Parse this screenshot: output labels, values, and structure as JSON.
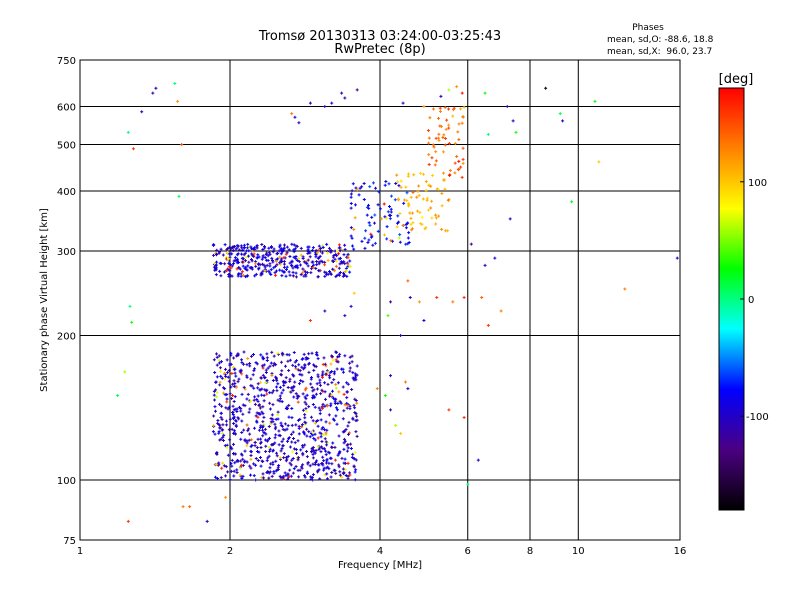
{
  "chart_data": {
    "type": "scatter",
    "title": "Tromsø 20130313 03:24:00-03:25:43",
    "subtitle": "RwPretec (8p)",
    "xlabel": "Frequency [MHz]",
    "ylabel": "Stationary phase Virtual Height [km]",
    "x_scale": "log",
    "y_scale": "log",
    "xlim": [
      1,
      16
    ],
    "ylim": [
      75,
      750
    ],
    "x_ticks": [
      1,
      2,
      4,
      6,
      8,
      10,
      16
    ],
    "y_ticks": [
      75,
      100,
      200,
      300,
      400,
      500,
      600,
      750
    ],
    "x_gridlines": [
      2,
      4,
      6,
      8,
      10
    ],
    "y_gridlines": [
      100,
      200,
      300,
      400,
      500,
      600
    ],
    "grid": true,
    "phases": {
      "heading": "Phases",
      "line_o": "mean, sd,O: -88.6, 18.8",
      "line_x": "mean, sd,X:  96.0, 23.7"
    },
    "colorbar": {
      "label": "[deg]",
      "range": [
        -180,
        180
      ],
      "ticks": [
        100,
        0,
        -100
      ],
      "colormap": "rainbow",
      "colors": [
        "#000000",
        "#4b0082",
        "#0000ff",
        "#00ffff",
        "#00ff00",
        "#ffff00",
        "#ff8000",
        "#ff0000"
      ]
    },
    "clusters": [
      {
        "x": [
          1.85,
          3.6
        ],
        "y": [
          100,
          185
        ],
        "phase": -100,
        "count": 950
      },
      {
        "x": [
          1.85,
          3.5
        ],
        "y": [
          265,
          310
        ],
        "phase": -95,
        "count": 420
      },
      {
        "x": [
          3.5,
          4.6
        ],
        "y": [
          300,
          420
        ],
        "phase": -80,
        "count": 90
      },
      {
        "x": [
          4.3,
          5.5
        ],
        "y": [
          330,
          440
        ],
        "phase": 110,
        "count": 70
      },
      {
        "x": [
          5.0,
          5.9
        ],
        "y": [
          420,
          600
        ],
        "phase": 140,
        "count": 60
      }
    ],
    "sparse_points": [
      {
        "x": 1.25,
        "y": 530,
        "phase": 0
      },
      {
        "x": 1.28,
        "y": 490,
        "phase": 160
      },
      {
        "x": 1.33,
        "y": 585,
        "phase": -100
      },
      {
        "x": 1.4,
        "y": 640,
        "phase": -110
      },
      {
        "x": 1.42,
        "y": 655,
        "phase": -110
      },
      {
        "x": 1.55,
        "y": 670,
        "phase": 0
      },
      {
        "x": 1.57,
        "y": 615,
        "phase": 120
      },
      {
        "x": 1.58,
        "y": 390,
        "phase": 10
      },
      {
        "x": 1.6,
        "y": 500,
        "phase": 150
      },
      {
        "x": 1.26,
        "y": 230,
        "phase": 0
      },
      {
        "x": 1.27,
        "y": 213,
        "phase": 30
      },
      {
        "x": 1.23,
        "y": 168,
        "phase": 60
      },
      {
        "x": 1.19,
        "y": 150,
        "phase": 10
      },
      {
        "x": 1.25,
        "y": 82,
        "phase": 160
      },
      {
        "x": 1.61,
        "y": 88,
        "phase": 130
      },
      {
        "x": 1.66,
        "y": 88,
        "phase": 140
      },
      {
        "x": 1.8,
        "y": 82,
        "phase": -100
      },
      {
        "x": 1.96,
        "y": 92,
        "phase": 120
      },
      {
        "x": 2.66,
        "y": 580,
        "phase": 130
      },
      {
        "x": 2.7,
        "y": 570,
        "phase": -100
      },
      {
        "x": 2.75,
        "y": 555,
        "phase": -100
      },
      {
        "x": 2.9,
        "y": 610,
        "phase": -100
      },
      {
        "x": 3.1,
        "y": 600,
        "phase": -120
      },
      {
        "x": 3.2,
        "y": 610,
        "phase": -100
      },
      {
        "x": 3.35,
        "y": 640,
        "phase": -100
      },
      {
        "x": 3.4,
        "y": 625,
        "phase": -110
      },
      {
        "x": 3.6,
        "y": 650,
        "phase": -130
      },
      {
        "x": 4.45,
        "y": 610,
        "phase": -100
      },
      {
        "x": 4.9,
        "y": 600,
        "phase": 120
      },
      {
        "x": 5.3,
        "y": 630,
        "phase": -100
      },
      {
        "x": 5.5,
        "y": 650,
        "phase": 60
      },
      {
        "x": 5.7,
        "y": 660,
        "phase": 120
      },
      {
        "x": 5.85,
        "y": 640,
        "phase": 170
      },
      {
        "x": 6.5,
        "y": 640,
        "phase": 20
      },
      {
        "x": 6.6,
        "y": 525,
        "phase": 0
      },
      {
        "x": 7.2,
        "y": 600,
        "phase": -100
      },
      {
        "x": 7.4,
        "y": 560,
        "phase": -100
      },
      {
        "x": 7.5,
        "y": 530,
        "phase": 30
      },
      {
        "x": 8.6,
        "y": 655,
        "phase": -170
      },
      {
        "x": 9.2,
        "y": 580,
        "phase": 10
      },
      {
        "x": 9.3,
        "y": 560,
        "phase": -100
      },
      {
        "x": 10.8,
        "y": 615,
        "phase": 20
      },
      {
        "x": 11.0,
        "y": 460,
        "phase": 100
      },
      {
        "x": 9.7,
        "y": 380,
        "phase": 20
      },
      {
        "x": 7.3,
        "y": 350,
        "phase": -100
      },
      {
        "x": 6.8,
        "y": 290,
        "phase": -100
      },
      {
        "x": 6.5,
        "y": 280,
        "phase": -100
      },
      {
        "x": 6.1,
        "y": 310,
        "phase": -120
      },
      {
        "x": 6.4,
        "y": 240,
        "phase": 140
      },
      {
        "x": 5.9,
        "y": 240,
        "phase": 160
      },
      {
        "x": 6.6,
        "y": 210,
        "phase": 160
      },
      {
        "x": 7.0,
        "y": 225,
        "phase": 130
      },
      {
        "x": 12.4,
        "y": 250,
        "phase": 130
      },
      {
        "x": 15.8,
        "y": 290,
        "phase": -100
      },
      {
        "x": 5.6,
        "y": 235,
        "phase": 130
      },
      {
        "x": 5.2,
        "y": 240,
        "phase": 160
      },
      {
        "x": 4.8,
        "y": 235,
        "phase": 120
      },
      {
        "x": 4.6,
        "y": 240,
        "phase": -100
      },
      {
        "x": 4.55,
        "y": 260,
        "phase": 140
      },
      {
        "x": 4.9,
        "y": 215,
        "phase": -100
      },
      {
        "x": 4.4,
        "y": 200,
        "phase": -100
      },
      {
        "x": 4.2,
        "y": 235,
        "phase": -120
      },
      {
        "x": 4.15,
        "y": 220,
        "phase": 40
      },
      {
        "x": 3.55,
        "y": 245,
        "phase": 100
      },
      {
        "x": 3.5,
        "y": 230,
        "phase": -100
      },
      {
        "x": 3.4,
        "y": 220,
        "phase": -100
      },
      {
        "x": 3.1,
        "y": 225,
        "phase": -100
      },
      {
        "x": 2.9,
        "y": 215,
        "phase": 160
      },
      {
        "x": 4.2,
        "y": 165,
        "phase": -100
      },
      {
        "x": 4.5,
        "y": 160,
        "phase": 130
      },
      {
        "x": 4.55,
        "y": 155,
        "phase": -100
      },
      {
        "x": 4.2,
        "y": 140,
        "phase": -100
      },
      {
        "x": 4.3,
        "y": 130,
        "phase": 60
      },
      {
        "x": 4.4,
        "y": 125,
        "phase": 100
      },
      {
        "x": 4.1,
        "y": 150,
        "phase": 30
      },
      {
        "x": 3.95,
        "y": 155,
        "phase": 130
      },
      {
        "x": 5.5,
        "y": 140,
        "phase": 160
      },
      {
        "x": 5.9,
        "y": 135,
        "phase": 160
      },
      {
        "x": 6.0,
        "y": 98,
        "phase": 0
      },
      {
        "x": 6.3,
        "y": 110,
        "phase": -100
      }
    ]
  }
}
